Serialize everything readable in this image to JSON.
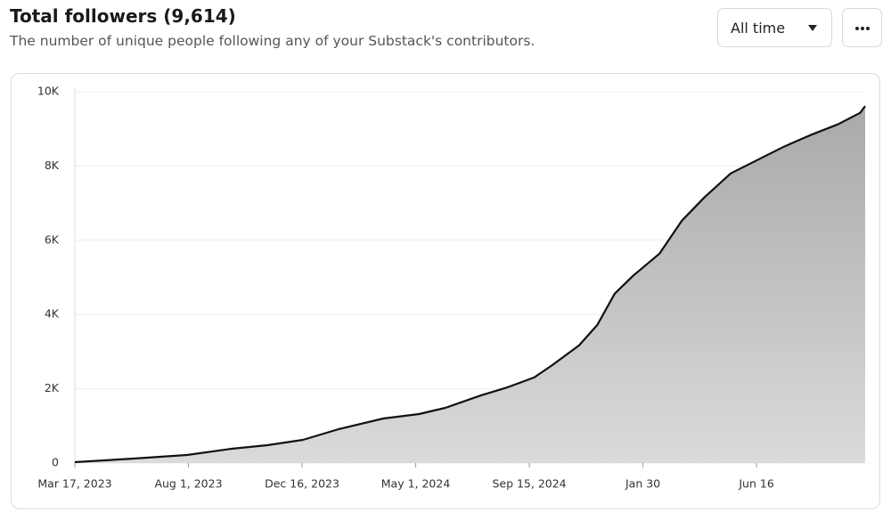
{
  "header": {
    "title": "Total followers (9,614)",
    "subtitle": "The number of unique people following any of your Substack's contributors."
  },
  "controls": {
    "range": "All time"
  },
  "chart_data": {
    "type": "area",
    "color": "#111111",
    "x": [
      0,
      71,
      135,
      189,
      232,
      275,
      318,
      372,
      415,
      447,
      490,
      522,
      554,
      576,
      608,
      630,
      651,
      673,
      705,
      732,
      759,
      791,
      823,
      855,
      887,
      920,
      947,
      953
    ],
    "values": [
      24,
      120,
      216,
      384,
      480,
      624,
      912,
      1200,
      1320,
      1488,
      1824,
      2040,
      2304,
      2640,
      3168,
      3720,
      4560,
      5040,
      5640,
      6528,
      7152,
      7800,
      8160,
      8520,
      8832,
      9120,
      9432,
      9614
    ],
    "xlim": [
      0,
      953
    ],
    "xticks": [
      {
        "value": 0,
        "label": "Mar 17, 2023"
      },
      {
        "value": 137,
        "label": "Aug 1, 2023"
      },
      {
        "value": 274,
        "label": "Dec 16, 2023"
      },
      {
        "value": 411,
        "label": "May 1, 2024"
      },
      {
        "value": 548,
        "label": "Sep 15, 2024"
      },
      {
        "value": 685,
        "label": "Jan 30"
      },
      {
        "value": 822,
        "label": "Jun 16"
      }
    ],
    "ylim": [
      0,
      10000
    ],
    "yticks": [
      0,
      {
        "value": 2000,
        "label": "2K"
      },
      {
        "value": 4000,
        "label": "4K"
      },
      {
        "value": 6000,
        "label": "6K"
      },
      {
        "value": 8000,
        "label": "8K"
      },
      {
        "value": 10000,
        "label": "10K"
      }
    ],
    "grid": true
  }
}
